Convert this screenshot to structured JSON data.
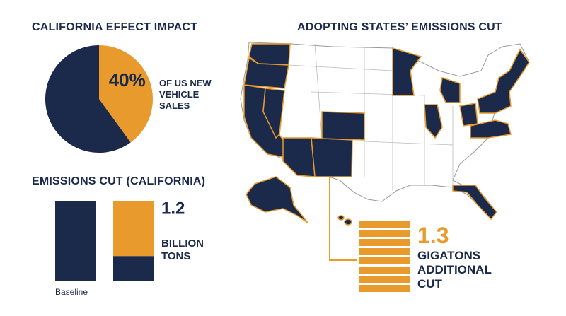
{
  "chart_data": [
    {
      "type": "pie",
      "title": "CALIFORNIA EFFECT IMPACT",
      "values": [
        40,
        60
      ],
      "value_labels": [
        "40%",
        null
      ],
      "colors": [
        "#e89a2c",
        "#1b2a4a"
      ],
      "annotation": "OF US NEW VEHICLE SALES"
    },
    {
      "type": "bar",
      "title": "EMISSIONS CUT (CALIFORNIA)",
      "stacked": true,
      "categories": [
        "Baseline",
        null
      ],
      "series": [
        {
          "color": "#1b2a4a",
          "values": [
            1.75,
            0.55
          ]
        },
        {
          "color": "#e89a2c",
          "values": [
            null,
            1.2
          ],
          "value_labels": [
            null,
            "1.2"
          ]
        }
      ],
      "annotation": "BILLION TONS"
    }
  ],
  "map": {
    "title": "ADOPTING STATES’ EMISSIONS CUT",
    "value": 1.3,
    "annotation": "GIGATONS ADDITIONAL CUT"
  }
}
